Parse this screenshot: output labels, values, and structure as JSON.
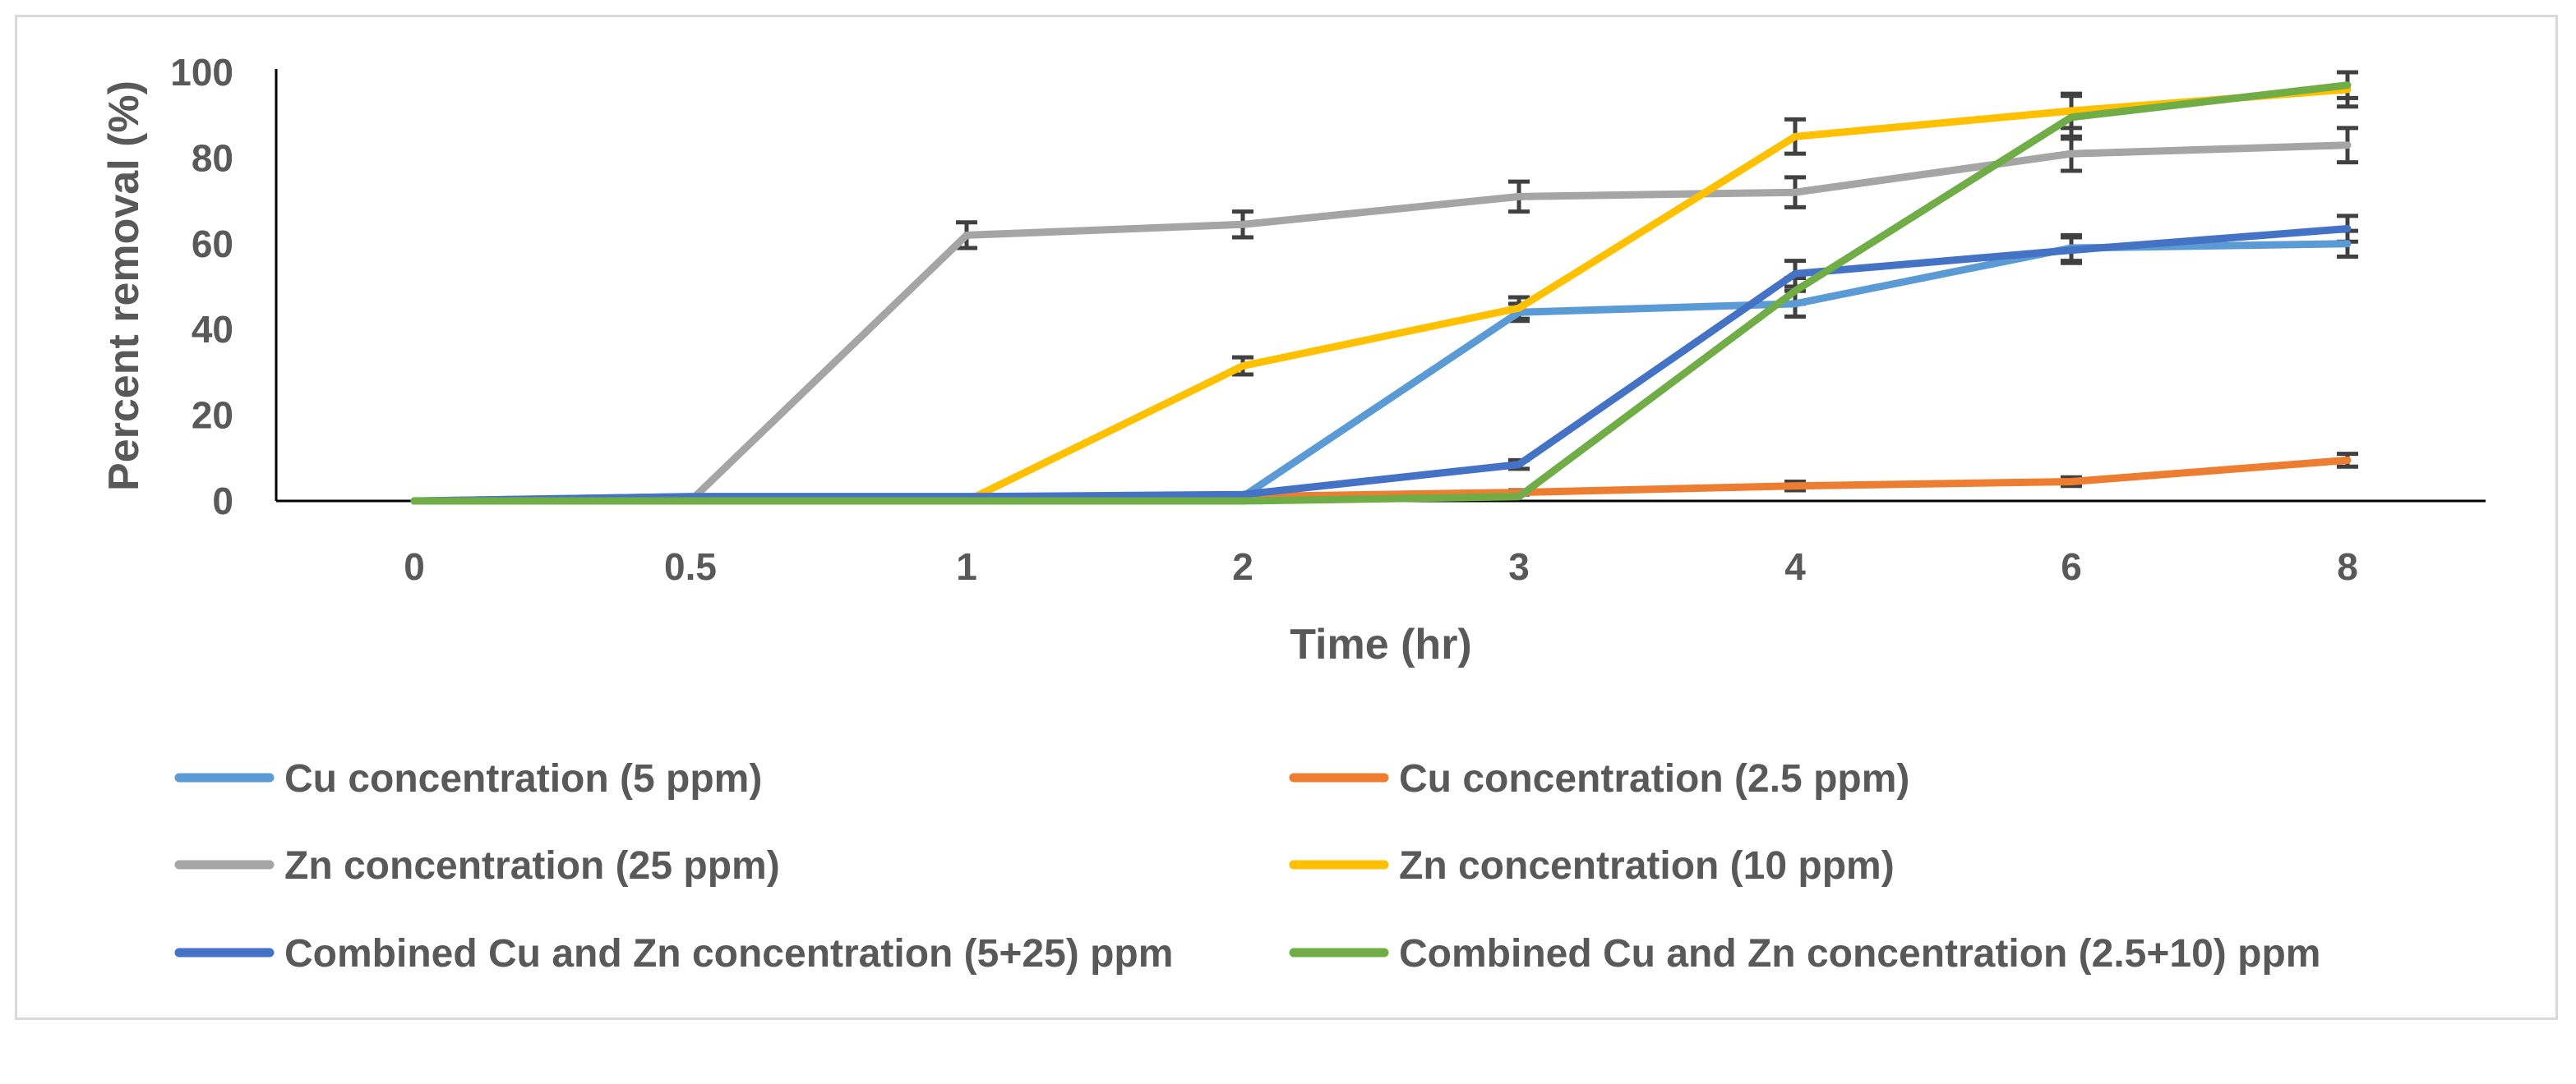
{
  "chart_data": {
    "type": "line",
    "title": "",
    "xlabel": "Time (hr)",
    "ylabel": "Percent removal (%)",
    "categories": [
      "0",
      "0.5",
      "1",
      "2",
      "3",
      "4",
      "6",
      "8"
    ],
    "ylim": [
      0,
      100
    ],
    "yticks": [
      0,
      20,
      40,
      60,
      80,
      100
    ],
    "grid": false,
    "legend_position": "bottom",
    "series": [
      {
        "name": "Cu concentration (5 ppm)",
        "color": "#5B9BD5",
        "values": [
          0,
          1,
          1,
          1,
          44,
          46,
          59,
          60
        ],
        "errors": [
          0,
          0,
          0,
          0,
          2,
          3,
          3,
          3
        ]
      },
      {
        "name": "Cu concentration (2.5 ppm)",
        "color": "#ED7D31",
        "values": [
          0,
          0,
          0,
          1,
          2,
          3.5,
          4.5,
          9.5
        ],
        "errors": [
          0,
          0,
          0,
          0,
          0.5,
          1,
          1,
          1.5
        ]
      },
      {
        "name": "Zn concentration (25 ppm)",
        "color": "#A5A5A5",
        "values": [
          0,
          0,
          62,
          64.5,
          71,
          72,
          81,
          83
        ],
        "errors": [
          0,
          0,
          3,
          3,
          3.5,
          3.5,
          4,
          4
        ]
      },
      {
        "name": "Zn concentration (10 ppm)",
        "color": "#FFC000",
        "values": [
          0,
          0,
          0,
          31.5,
          45,
          85,
          91,
          96
        ],
        "errors": [
          0,
          0,
          0,
          2,
          2.5,
          4,
          4,
          4
        ]
      },
      {
        "name": "Combined Cu and Zn concentration (5+25) ppm",
        "color": "#4472C4",
        "values": [
          0,
          1,
          1,
          1.5,
          8.5,
          53,
          58.5,
          63.5
        ],
        "errors": [
          0,
          0,
          0,
          0,
          1,
          3,
          3,
          3
        ]
      },
      {
        "name": "Combined Cu and Zn concentration (2.5+10) ppm",
        "color": "#70AD47",
        "values": [
          0,
          0,
          0,
          0,
          1,
          49,
          89.5,
          97
        ],
        "errors": [
          0,
          0,
          0,
          0,
          0,
          3,
          5,
          3
        ]
      }
    ]
  }
}
